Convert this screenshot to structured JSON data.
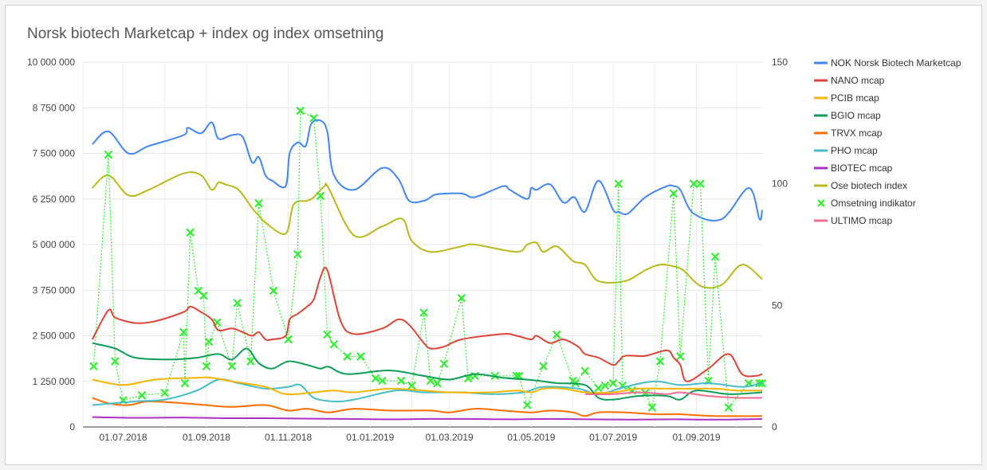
{
  "chart_data": {
    "type": "line",
    "title": "Norsk biotech Marketcap + index og index omsetning",
    "xlabel": "",
    "ylabel": "",
    "ylim": [
      0,
      10000000
    ],
    "y2lim": [
      0,
      150
    ],
    "y_ticks": [
      "0",
      "1 250 000",
      "2 500 000",
      "3 750 000",
      "5 000 000",
      "6 250 000",
      "7 500 000",
      "8 750 000",
      "10 000 000"
    ],
    "y_tick_values": [
      0,
      1250000,
      2500000,
      3750000,
      5000000,
      6250000,
      7500000,
      8750000,
      10000000
    ],
    "y2_ticks": [
      "0",
      "50",
      "100",
      "150"
    ],
    "y2_tick_values": [
      0,
      50,
      100,
      150
    ],
    "x_range": [
      "2018-06-01",
      "2019-10-20"
    ],
    "x_ticks": [
      {
        "label": "01.07.2018",
        "date": "2018-07-01"
      },
      {
        "label": "01.09.2018",
        "date": "2018-09-01"
      },
      {
        "label": "01.11.2018",
        "date": "2018-11-01"
      },
      {
        "label": "01.01.2019",
        "date": "2019-01-01"
      },
      {
        "label": "01.03.2019",
        "date": "2019-03-01"
      },
      {
        "label": "01.05.2019",
        "date": "2019-05-01"
      },
      {
        "label": "01.07.2019",
        "date": "2019-07-01"
      },
      {
        "label": "01.09.2019",
        "date": "2019-09-01"
      }
    ],
    "grid": true,
    "legend_position": "right",
    "series": [
      {
        "name": "NOK Norsk Biotech Marketcap",
        "color": "#4285f4",
        "axis": "left",
        "style": "line",
        "x": [
          "2018-06-08",
          "2018-06-20",
          "2018-07-05",
          "2018-07-20",
          "2018-08-15",
          "2018-08-18",
          "2018-08-28",
          "2018-09-05",
          "2018-09-10",
          "2018-09-20",
          "2018-09-28",
          "2018-10-05",
          "2018-10-10",
          "2018-10-15",
          "2018-10-20",
          "2018-10-30",
          "2018-11-02",
          "2018-11-08",
          "2018-11-14",
          "2018-11-18",
          "2018-11-25",
          "2018-11-30",
          "2018-12-05",
          "2018-12-20",
          "2019-01-10",
          "2019-01-22",
          "2019-01-30",
          "2019-02-10",
          "2019-02-15",
          "2019-02-20",
          "2019-03-10",
          "2019-03-20",
          "2019-04-10",
          "2019-04-15",
          "2019-04-28",
          "2019-05-01",
          "2019-05-05",
          "2019-05-15",
          "2019-05-25",
          "2019-06-02",
          "2019-06-10",
          "2019-06-20",
          "2019-07-01",
          "2019-07-05",
          "2019-07-12",
          "2019-07-25",
          "2019-08-10",
          "2019-08-15",
          "2019-08-20",
          "2019-08-30",
          "2019-09-20",
          "2019-10-10",
          "2019-10-18",
          "2019-10-20"
        ],
        "y": [
          7750000,
          8100000,
          7500000,
          7700000,
          8000000,
          8200000,
          8050000,
          8350000,
          7900000,
          8000000,
          7950000,
          7250000,
          7400000,
          6900000,
          6750000,
          6600000,
          7500000,
          7800000,
          7700000,
          8300000,
          8400000,
          8100000,
          6900000,
          6500000,
          7100000,
          6800000,
          6200000,
          6200000,
          6300000,
          6380000,
          6400000,
          6300000,
          6600000,
          6500000,
          6250000,
          6550000,
          6500000,
          6650000,
          6150000,
          6300000,
          5900000,
          6750000,
          5950000,
          5900000,
          5850000,
          6300000,
          6600000,
          6600000,
          6500000,
          5850000,
          5700000,
          6550000,
          5700000,
          5950000
        ]
      },
      {
        "name": "NANO mcap",
        "color": "#db4437",
        "axis": "left",
        "style": "line",
        "x": [
          "2018-06-08",
          "2018-06-20",
          "2018-06-25",
          "2018-07-10",
          "2018-07-25",
          "2018-08-15",
          "2018-08-20",
          "2018-08-28",
          "2018-09-05",
          "2018-09-10",
          "2018-09-20",
          "2018-09-28",
          "2018-10-05",
          "2018-10-10",
          "2018-10-15",
          "2018-10-20",
          "2018-10-30",
          "2018-11-02",
          "2018-11-08",
          "2018-11-15",
          "2018-11-20",
          "2018-11-25",
          "2018-11-30",
          "2018-12-10",
          "2018-12-20",
          "2019-01-10",
          "2019-01-22",
          "2019-01-30",
          "2019-02-10",
          "2019-02-15",
          "2019-02-25",
          "2019-03-10",
          "2019-04-10",
          "2019-04-20",
          "2019-05-01",
          "2019-05-05",
          "2019-05-15",
          "2019-05-25",
          "2019-06-05",
          "2019-06-10",
          "2019-06-20",
          "2019-07-01",
          "2019-07-05",
          "2019-07-10",
          "2019-07-25",
          "2019-08-10",
          "2019-08-15",
          "2019-08-20",
          "2019-08-25",
          "2019-09-10",
          "2019-09-25",
          "2019-10-05",
          "2019-10-15",
          "2019-10-20"
        ],
        "y": [
          2400000,
          3200000,
          3000000,
          2850000,
          2900000,
          3150000,
          3300000,
          3150000,
          2950000,
          2650000,
          2700000,
          2600000,
          2500000,
          2600000,
          2400000,
          2400000,
          2500000,
          2950000,
          3100000,
          3300000,
          3500000,
          4100000,
          4300000,
          2900000,
          2550000,
          2700000,
          2950000,
          2800000,
          2300000,
          2150000,
          2200000,
          2400000,
          2550000,
          2500000,
          2400000,
          2500000,
          2300000,
          2400000,
          2200000,
          2000000,
          1900000,
          1700000,
          1800000,
          1950000,
          1950000,
          2100000,
          1900000,
          1700000,
          1250000,
          1600000,
          2000000,
          1450000,
          1400000,
          1450000
        ]
      },
      {
        "name": "PCIB mcap",
        "color": "#f4b400",
        "axis": "left",
        "style": "line",
        "x": [
          "2018-06-08",
          "2018-07-01",
          "2018-07-25",
          "2018-08-25",
          "2018-09-05",
          "2018-09-20",
          "2018-10-15",
          "2018-10-30",
          "2018-11-20",
          "2018-12-05",
          "2018-12-20",
          "2019-01-15",
          "2019-02-10",
          "2019-03-01",
          "2019-04-01",
          "2019-04-20",
          "2019-05-01",
          "2019-05-10",
          "2019-05-25",
          "2019-06-10",
          "2019-07-01",
          "2019-07-20",
          "2019-08-10",
          "2019-08-25",
          "2019-09-15",
          "2019-10-01",
          "2019-10-20"
        ],
        "y": [
          1300000,
          1150000,
          1300000,
          1350000,
          1350000,
          1250000,
          1100000,
          900000,
          950000,
          1000000,
          950000,
          1050000,
          1000000,
          950000,
          950000,
          1000000,
          950000,
          1050000,
          1050000,
          950000,
          950000,
          1050000,
          1050000,
          1050000,
          1050000,
          1000000,
          1000000
        ]
      },
      {
        "name": "BGIO mcap",
        "color": "#0f9d58",
        "axis": "left",
        "style": "line",
        "x": [
          "2018-06-08",
          "2018-06-25",
          "2018-07-10",
          "2018-08-05",
          "2018-08-25",
          "2018-09-10",
          "2018-09-20",
          "2018-10-01",
          "2018-10-10",
          "2018-10-20",
          "2018-11-01",
          "2018-11-15",
          "2018-11-25",
          "2018-12-01",
          "2018-12-15",
          "2019-01-15",
          "2019-02-10",
          "2019-03-01",
          "2019-03-20",
          "2019-04-10",
          "2019-04-28",
          "2019-05-10",
          "2019-05-20",
          "2019-06-10",
          "2019-06-20",
          "2019-07-01",
          "2019-07-20",
          "2019-08-10",
          "2019-08-20",
          "2019-09-01",
          "2019-09-25",
          "2019-10-20"
        ],
        "y": [
          2300000,
          2150000,
          1900000,
          1850000,
          1900000,
          2000000,
          1850000,
          2150000,
          1750000,
          1600000,
          1800000,
          1700000,
          1600000,
          1650000,
          1450000,
          1550000,
          1400000,
          1300000,
          1450000,
          1350000,
          1300000,
          1250000,
          1200000,
          1150000,
          800000,
          750000,
          850000,
          850000,
          750000,
          1000000,
          900000,
          950000
        ]
      },
      {
        "name": "TRVX mcap",
        "color": "#ff6d00",
        "axis": "left",
        "style": "line",
        "x": [
          "2018-06-08",
          "2018-06-20",
          "2018-07-05",
          "2018-07-20",
          "2018-08-15",
          "2018-09-01",
          "2018-09-20",
          "2018-10-15",
          "2018-11-01",
          "2018-11-15",
          "2018-12-01",
          "2018-12-20",
          "2019-01-15",
          "2019-02-15",
          "2019-03-01",
          "2019-03-20",
          "2019-04-10",
          "2019-05-01",
          "2019-05-15",
          "2019-06-01",
          "2019-06-10",
          "2019-06-20",
          "2019-07-10",
          "2019-08-01",
          "2019-08-20",
          "2019-09-15",
          "2019-10-20"
        ],
        "y": [
          800000,
          650000,
          600000,
          700000,
          650000,
          600000,
          550000,
          600000,
          450000,
          500000,
          400000,
          500000,
          450000,
          450000,
          400000,
          500000,
          450000,
          400000,
          450000,
          400000,
          300000,
          400000,
          400000,
          350000,
          350000,
          300000,
          300000
        ]
      },
      {
        "name": "PHO mcap",
        "color": "#46bdc6",
        "axis": "left",
        "style": "line",
        "x": [
          "2018-06-08",
          "2018-07-10",
          "2018-08-01",
          "2018-08-25",
          "2018-09-10",
          "2018-09-25",
          "2018-10-15",
          "2018-11-01",
          "2018-11-10",
          "2018-11-20",
          "2018-12-05",
          "2018-12-20",
          "2019-01-20",
          "2019-02-10",
          "2019-03-10",
          "2019-04-01",
          "2019-04-25",
          "2019-05-10",
          "2019-06-05",
          "2019-06-20",
          "2019-07-10",
          "2019-08-01",
          "2019-08-20",
          "2019-09-10",
          "2019-10-05",
          "2019-10-20"
        ],
        "y": [
          600000,
          700000,
          750000,
          1000000,
          1300000,
          1200000,
          1050000,
          1100000,
          1150000,
          800000,
          700000,
          750000,
          1000000,
          950000,
          950000,
          900000,
          950000,
          1100000,
          1050000,
          900000,
          1100000,
          1250000,
          1150000,
          1200000,
          1100000,
          1200000
        ]
      },
      {
        "name": "BIOTEC mcap",
        "color": "#ab30c4",
        "axis": "left",
        "style": "line",
        "x": [
          "2018-06-08",
          "2018-07-15",
          "2018-08-15",
          "2018-09-15",
          "2018-10-15",
          "2018-11-15",
          "2018-12-15",
          "2019-01-15",
          "2019-02-15",
          "2019-03-15",
          "2019-04-15",
          "2019-05-15",
          "2019-06-15",
          "2019-07-15",
          "2019-08-15",
          "2019-09-15",
          "2019-10-20"
        ],
        "y": [
          270000,
          250000,
          260000,
          240000,
          240000,
          230000,
          220000,
          210000,
          220000,
          220000,
          210000,
          220000,
          210000,
          200000,
          210000,
          200000,
          220000
        ]
      },
      {
        "name": "Ose biotech index",
        "color": "#b9b91c",
        "axis": "left",
        "style": "line",
        "x": [
          "2018-06-08",
          "2018-06-20",
          "2018-07-05",
          "2018-07-20",
          "2018-08-15",
          "2018-08-28",
          "2018-09-05",
          "2018-09-10",
          "2018-09-15",
          "2018-09-25",
          "2018-10-05",
          "2018-10-10",
          "2018-10-15",
          "2018-10-30",
          "2018-11-05",
          "2018-11-15",
          "2018-11-20",
          "2018-11-28",
          "2018-12-01",
          "2018-12-20",
          "2019-01-10",
          "2019-01-25",
          "2019-02-01",
          "2019-02-15",
          "2019-03-10",
          "2019-03-20",
          "2019-04-20",
          "2019-04-28",
          "2019-05-05",
          "2019-05-10",
          "2019-05-20",
          "2019-06-01",
          "2019-06-10",
          "2019-06-20",
          "2019-07-10",
          "2019-07-25",
          "2019-08-05",
          "2019-08-15",
          "2019-08-22",
          "2019-09-05",
          "2019-09-20",
          "2019-10-05",
          "2019-10-20"
        ],
        "y": [
          6550000,
          6900000,
          6350000,
          6500000,
          6950000,
          6900000,
          6500000,
          6700000,
          6650000,
          6500000,
          6000000,
          5800000,
          5600000,
          5300000,
          6100000,
          6200000,
          6300000,
          6600000,
          6550000,
          5250000,
          5500000,
          5700000,
          5100000,
          4800000,
          4950000,
          5000000,
          4800000,
          5000000,
          5050000,
          4800000,
          4950000,
          4550000,
          4450000,
          4000000,
          4000000,
          4300000,
          4450000,
          4400000,
          4300000,
          3850000,
          3900000,
          4450000,
          4050000
        ]
      },
      {
        "name": "Omsetning indikator",
        "color": "#33ee33",
        "axis": "right",
        "style": "markers",
        "x": [
          "2018-06-09",
          "2018-06-20",
          "2018-06-25",
          "2018-07-01",
          "2018-07-15",
          "2018-08-01",
          "2018-08-15",
          "2018-08-16",
          "2018-08-20",
          "2018-08-26",
          "2018-08-30",
          "2018-09-01",
          "2018-09-03",
          "2018-09-09",
          "2018-09-20",
          "2018-09-24",
          "2018-10-04",
          "2018-10-10",
          "2018-10-21",
          "2018-11-01",
          "2018-11-08",
          "2018-11-10",
          "2018-11-20",
          "2018-11-25",
          "2018-11-30",
          "2018-12-05",
          "2018-12-15",
          "2018-12-25",
          "2019-01-05",
          "2019-01-10",
          "2019-01-24",
          "2019-02-01",
          "2019-02-10",
          "2019-02-15",
          "2019-02-20",
          "2019-02-25",
          "2019-03-10",
          "2019-03-15",
          "2019-03-20",
          "2019-04-04",
          "2019-04-20",
          "2019-04-22",
          "2019-04-28",
          "2019-05-10",
          "2019-05-20",
          "2019-06-01",
          "2019-06-03",
          "2019-06-10",
          "2019-06-20",
          "2019-06-25",
          "2019-07-01",
          "2019-07-05",
          "2019-07-08",
          "2019-07-15",
          "2019-07-25",
          "2019-07-30",
          "2019-08-05",
          "2019-08-15",
          "2019-08-20",
          "2019-08-30",
          "2019-09-04",
          "2019-09-10",
          "2019-09-15",
          "2019-09-25",
          "2019-10-10",
          "2019-10-18",
          "2019-10-20"
        ],
        "y": [
          25,
          112,
          27,
          11,
          13,
          14,
          39,
          18,
          80,
          56,
          54,
          25,
          35,
          43,
          25,
          51,
          27,
          92,
          56,
          36,
          71,
          130,
          127,
          95,
          38,
          34,
          29,
          29,
          20,
          19,
          19,
          17,
          47,
          19,
          18,
          26,
          53,
          20,
          21,
          21,
          21,
          21,
          9,
          25,
          38,
          19,
          18,
          23,
          16,
          17,
          18,
          100,
          17,
          15,
          14,
          8,
          27,
          96,
          29,
          100,
          100,
          19,
          70,
          8,
          18,
          18,
          18
        ]
      },
      {
        "name": "ULTIMO mcap",
        "color": "#f06e8c",
        "axis": "left",
        "style": "line",
        "x": [
          "2019-06-10",
          "2019-07-01",
          "2019-07-20",
          "2019-08-10",
          "2019-08-20",
          "2019-09-10",
          "2019-10-01",
          "2019-10-20"
        ],
        "y": [
          900000,
          900000,
          950000,
          900000,
          950000,
          850000,
          800000,
          800000
        ]
      }
    ]
  }
}
